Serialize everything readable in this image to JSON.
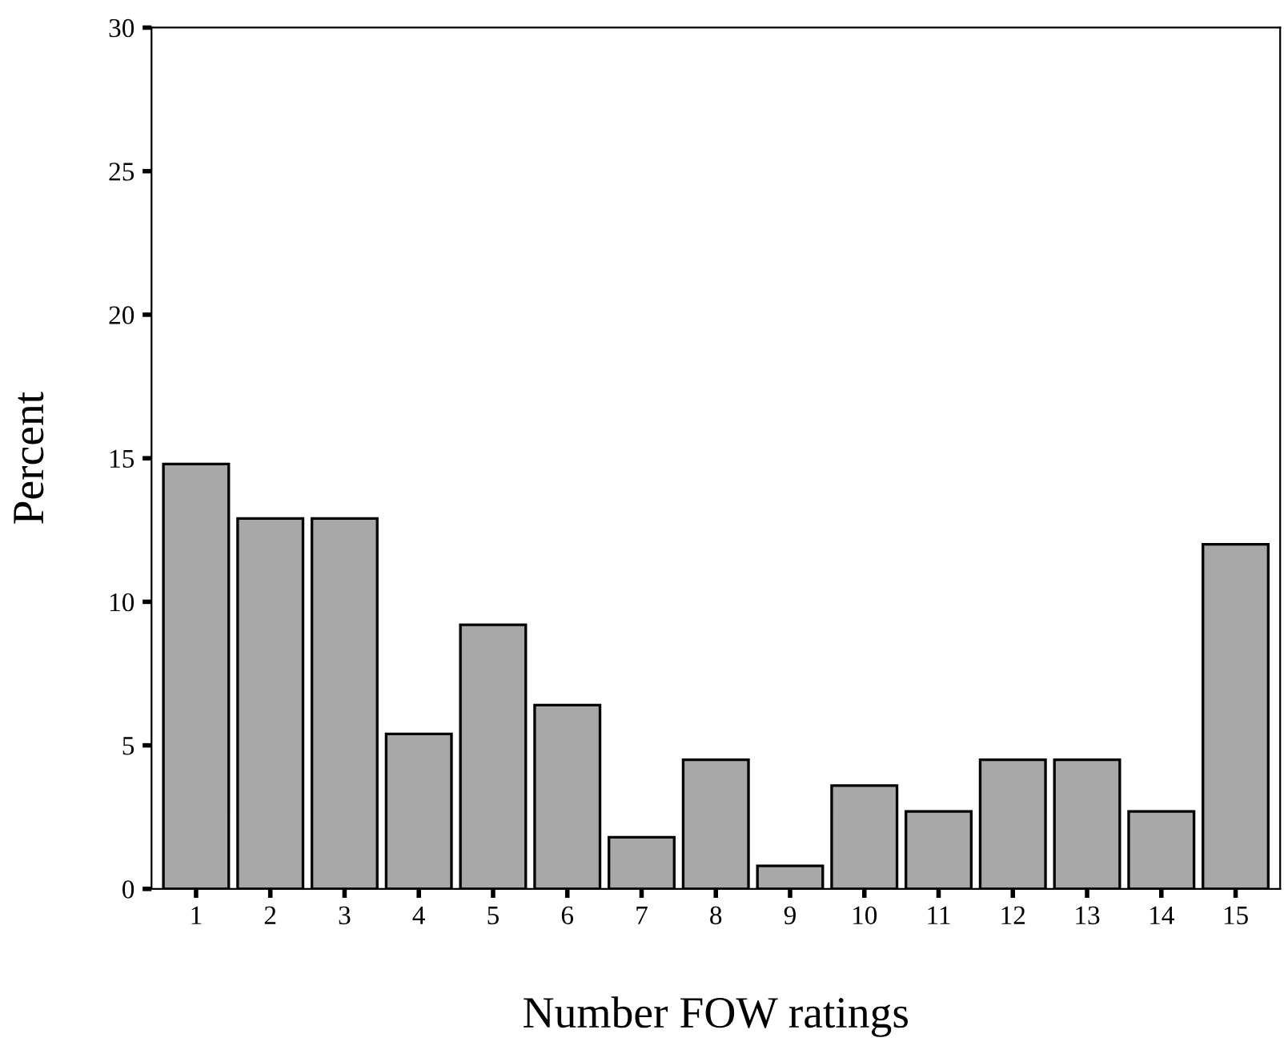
{
  "chart_data": {
    "type": "bar",
    "xlabel": "Number FOW ratings",
    "ylabel": "Percent",
    "categories": [
      "1",
      "2",
      "3",
      "4",
      "5",
      "6",
      "7",
      "8",
      "9",
      "10",
      "11",
      "12",
      "13",
      "14",
      "15"
    ],
    "values": [
      14.8,
      12.9,
      12.9,
      5.4,
      9.2,
      6.4,
      1.8,
      4.5,
      0.8,
      3.6,
      2.7,
      4.5,
      4.5,
      2.7,
      12.0
    ],
    "color": "#a8a8a8",
    "ylim": [
      0,
      30
    ],
    "yticks": [
      0,
      5,
      10,
      15,
      20,
      25,
      30
    ],
    "grid": false,
    "legend": false
  }
}
